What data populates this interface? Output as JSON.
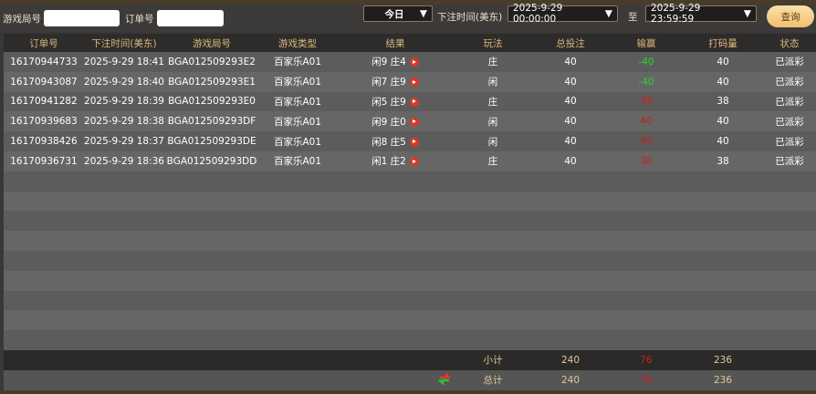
{
  "filter": {
    "game_round_label": "游戏局号",
    "game_round_value": "",
    "order_label": "订单号",
    "order_value": "",
    "period": "今日",
    "time_label": "下注时间(美东)",
    "start": "2025-9-29 00:00:00",
    "to_label": "至",
    "end": "2025-9-29 23:59:59",
    "query": "查询"
  },
  "columns": [
    "订单号",
    "下注时间(美东)",
    "游戏局号",
    "游戏类型",
    "结果",
    "玩法",
    "总投注",
    "输赢",
    "打码量",
    "状态"
  ],
  "rows": [
    {
      "order": "16170944733",
      "time": "2025-9-29 18:41",
      "round": "BGA012509293E2",
      "type": "百家乐A01",
      "result": "闲9 庄4",
      "play": "庄",
      "bet": "40",
      "win": "-40",
      "win_color": "green",
      "code": "40",
      "status": "已派彩"
    },
    {
      "order": "16170943087",
      "time": "2025-9-29 18:40",
      "round": "BGA012509293E1",
      "type": "百家乐A01",
      "result": "闲7 庄9",
      "play": "闲",
      "bet": "40",
      "win": "-40",
      "win_color": "green",
      "code": "40",
      "status": "已派彩"
    },
    {
      "order": "16170941282",
      "time": "2025-9-29 18:39",
      "round": "BGA012509293E0",
      "type": "百家乐A01",
      "result": "闲5 庄9",
      "play": "庄",
      "bet": "40",
      "win": "38",
      "win_color": "red",
      "code": "38",
      "status": "已派彩"
    },
    {
      "order": "16170939683",
      "time": "2025-9-29 18:38",
      "round": "BGA012509293DF",
      "type": "百家乐A01",
      "result": "闲9 庄0",
      "play": "闲",
      "bet": "40",
      "win": "40",
      "win_color": "red",
      "code": "40",
      "status": "已派彩"
    },
    {
      "order": "16170938426",
      "time": "2025-9-29 18:37",
      "round": "BGA012509293DE",
      "type": "百家乐A01",
      "result": "闲8 庄5",
      "play": "闲",
      "bet": "40",
      "win": "40",
      "win_color": "red",
      "code": "40",
      "status": "已派彩"
    },
    {
      "order": "16170936731",
      "time": "2025-9-29 18:36",
      "round": "BGA012509293DD",
      "type": "百家乐A01",
      "result": "闲1 庄2",
      "play": "庄",
      "bet": "40",
      "win": "38",
      "win_color": "red",
      "code": "38",
      "status": "已派彩"
    }
  ],
  "subtotal": {
    "label": "小计",
    "bet": "240",
    "win": "76",
    "code": "236"
  },
  "total": {
    "label": "总计",
    "bet": "240",
    "win": "76",
    "code": "236",
    "icon": "refresh-icon"
  },
  "colors": {
    "win_green": "#2bd62b",
    "win_red": "#c8201e",
    "header_text": "#d9b87a"
  }
}
